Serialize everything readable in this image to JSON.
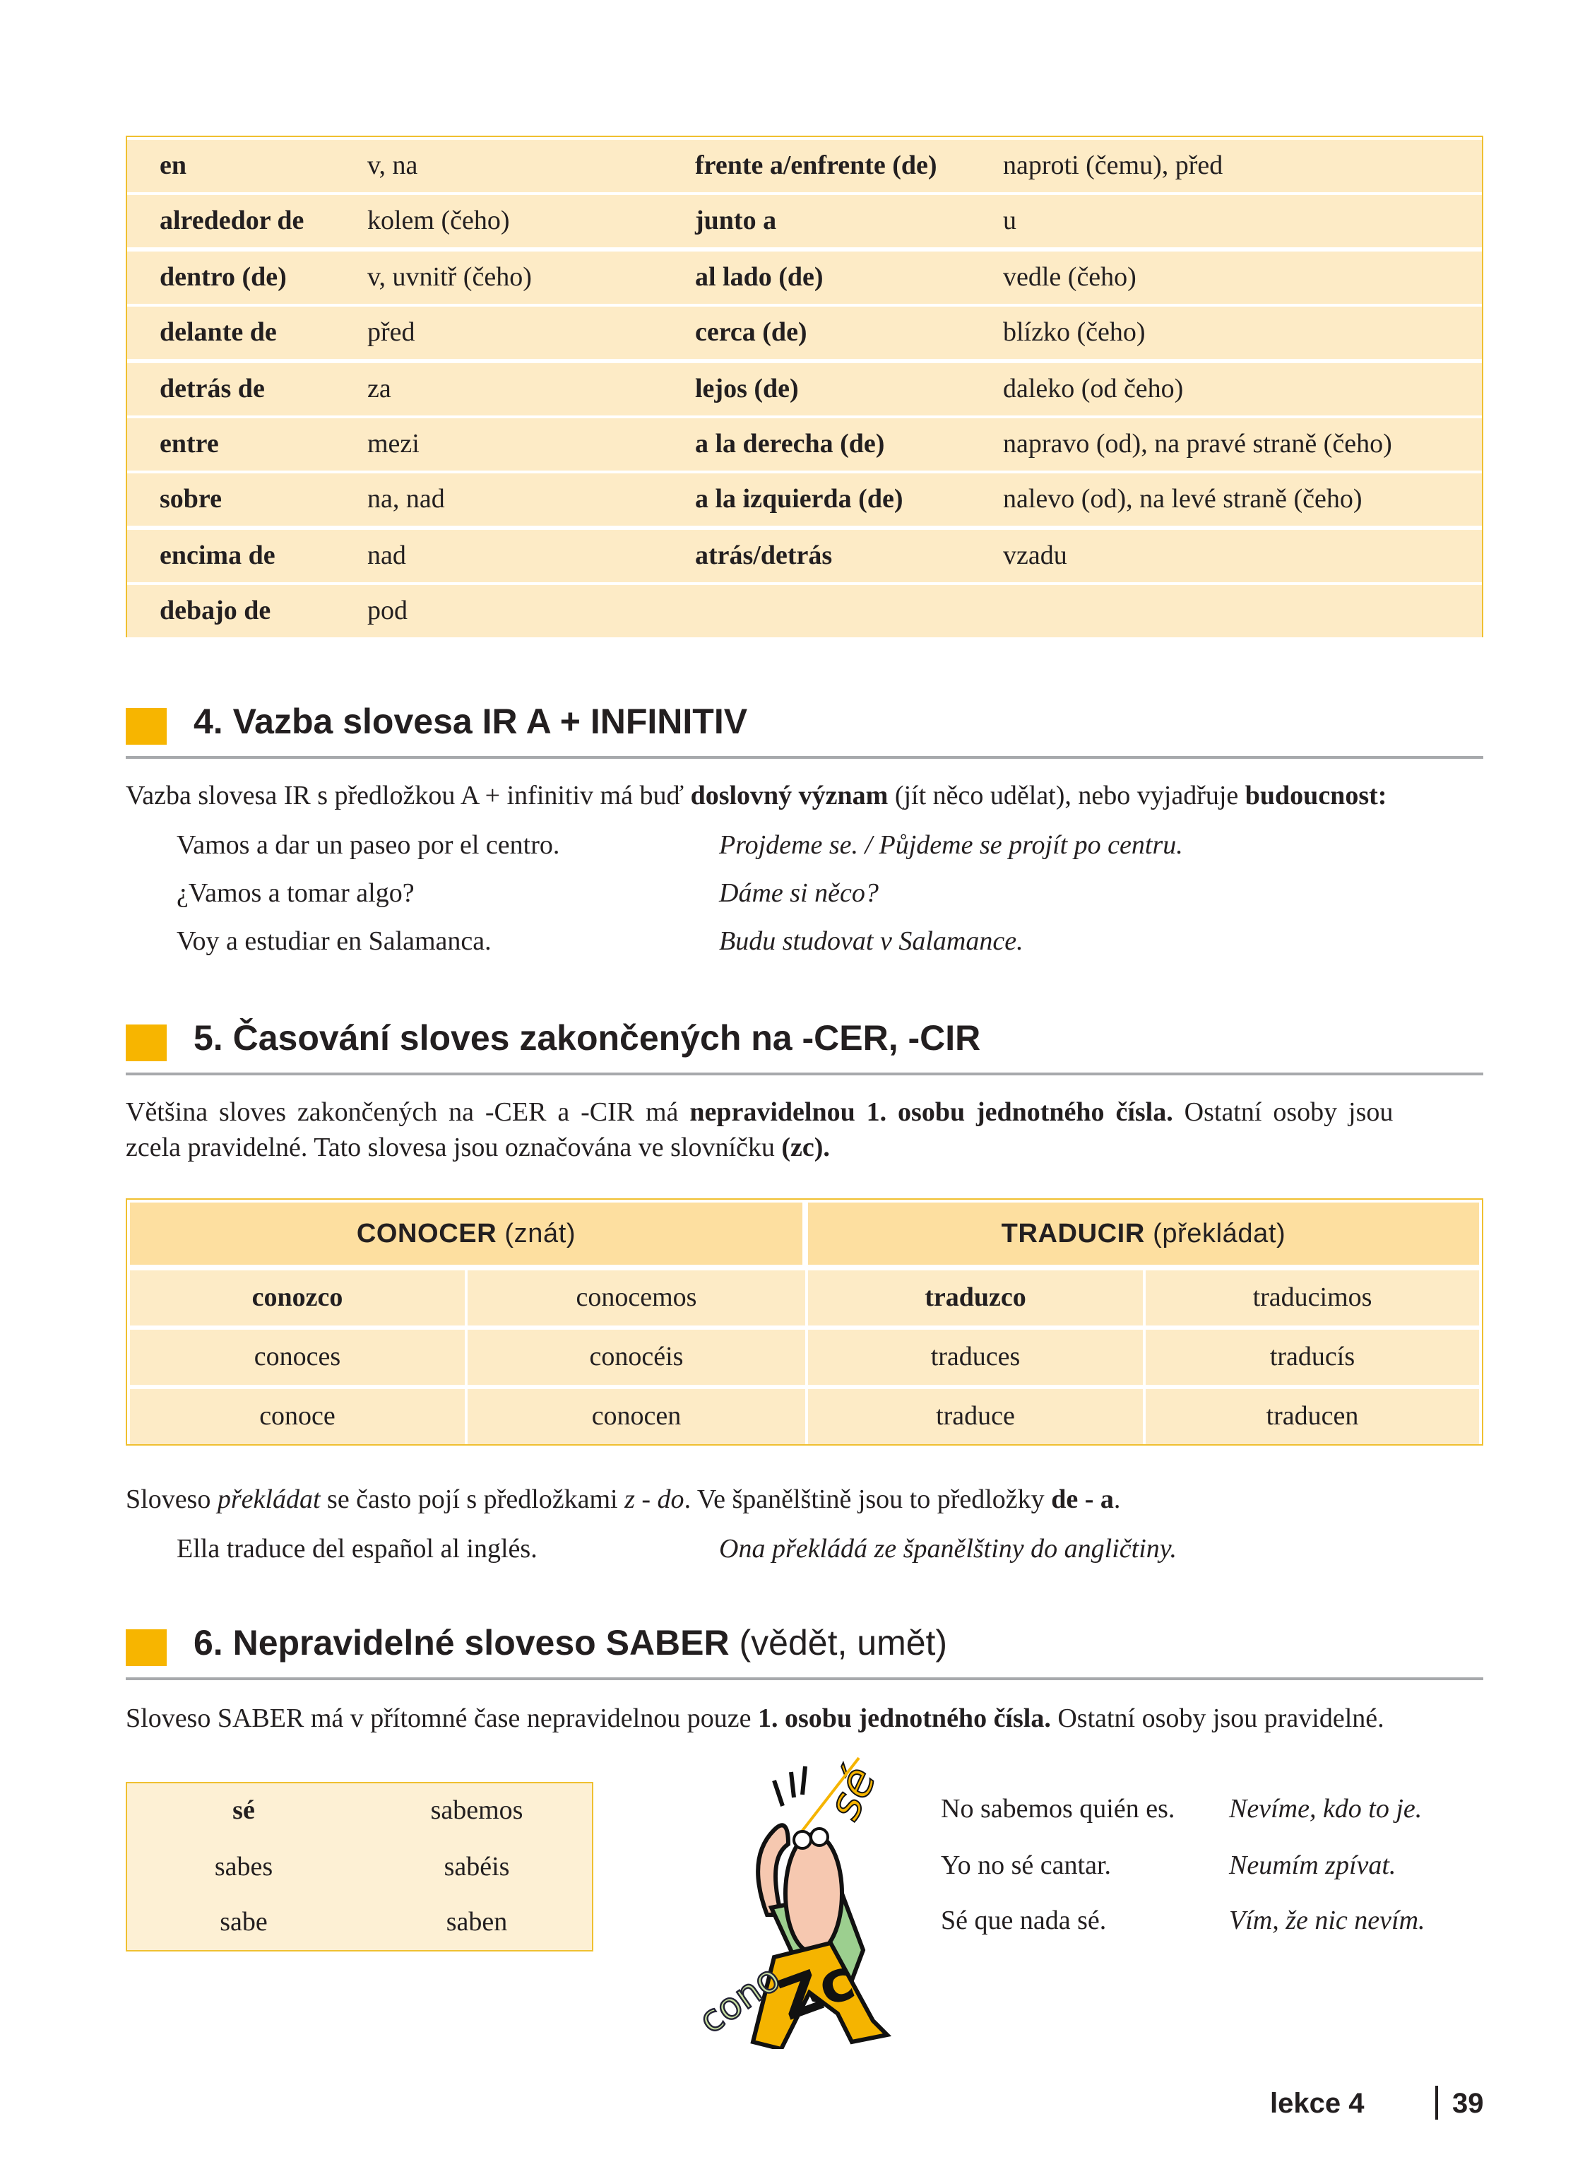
{
  "prepositions": [
    [
      "en",
      "v, na",
      "frente a/enfrente (de)",
      "naproti (čemu), před"
    ],
    [
      "alrededor de",
      "kolem (čeho)",
      "junto a",
      "u"
    ],
    [
      "dentro (de)",
      "v, uvnitř (čeho)",
      "al lado (de)",
      "vedle (čeho)"
    ],
    [
      "delante de",
      "před",
      "cerca (de)",
      "blízko (čeho)"
    ],
    [
      "detrás de",
      "za",
      "lejos (de)",
      "daleko (od čeho)"
    ],
    [
      "entre",
      "mezi",
      "a la derecha (de)",
      "napravo (od), na pravé straně (čeho)"
    ],
    [
      "sobre",
      "na, nad",
      "a la izquierda (de)",
      "nalevo (od), na levé straně (čeho)"
    ],
    [
      "encima de",
      "nad",
      "atrás/detrás",
      "vzadu"
    ],
    [
      "debajo de",
      "pod",
      "",
      ""
    ]
  ],
  "section4": {
    "title": "4. Vazba slovesa IR A + INFINITIV",
    "intro": [
      "Vazba slovesa IR s předložkou A + infinitiv má buď ",
      "doslovný význam",
      " (jít něco udělat), nebo vyjadřuje ",
      "budoucnost:"
    ],
    "examples": [
      [
        "Vamos a dar un paseo por el centro.",
        "Projdeme se. / Půjdeme se projít po centru."
      ],
      [
        "¿Vamos a tomar algo?",
        "Dáme si něco?"
      ],
      [
        "Voy a estudiar en Salamanca.",
        "Budu studovat v Salamance."
      ]
    ]
  },
  "section5": {
    "title": "5. Časování sloves zakončených na -CER, -CIR",
    "intro1": [
      "Většina sloves zakončených na -CER a -CIR má ",
      "nepravidelnou 1. osobu jednotného čísla.",
      " Ostatní osoby jsou"
    ],
    "intro2": [
      "zcela pravidelné. Tato slovesa jsou označována ve slovníčku ",
      "(zc)."
    ],
    "table": {
      "headers": [
        {
          "verb": "CONOCER",
          "meaning": " (znát)"
        },
        {
          "verb": "TRADUCIR",
          "meaning": " (překládat)"
        }
      ],
      "rows": [
        [
          "conozco",
          "conocemos",
          "traduzco",
          "traducimos"
        ],
        [
          "conoces",
          "conocéis",
          "traduces",
          "traducís"
        ],
        [
          "conoce",
          "conocen",
          "traduce",
          "traducen"
        ]
      ]
    },
    "note": [
      "Sloveso ",
      "překládat",
      " se často pojí s předložkami ",
      "z - do",
      ". Ve španělštině jsou to předložky ",
      "de - a",
      "."
    ],
    "example": [
      "Ella traduce del español al inglés.",
      "Ona překládá ze španělštiny do angličtiny."
    ]
  },
  "section6": {
    "title_bold": "6. Nepravidelné sloveso SABER",
    "title_rest": " (vědět, umět)",
    "intro": [
      "Sloveso SABER má v přítomné čase nepravidelnou pouze ",
      "1. osobu jednotného čísla.",
      " Ostatní osoby jsou pravidelné."
    ],
    "table": [
      [
        "sé",
        "sabemos"
      ],
      [
        "sabes",
        "sabéis"
      ],
      [
        "sabe",
        "saben"
      ]
    ],
    "illustration_text": {
      "top": "sé",
      "bottom_small": "cono",
      "bottom_big": "Zc"
    },
    "examples": [
      [
        "No sabemos quién es.",
        "Nevíme, kdo to je."
      ],
      [
        "Yo no sé cantar.",
        "Neumím zpívat."
      ],
      [
        "Sé que nada sé.",
        "Vím, že nic nevím."
      ]
    ]
  },
  "footer": {
    "lesson": "lekce 4",
    "page": "39"
  },
  "colors": {
    "accent": "#f7b500",
    "table_bg": "#fdebc6",
    "table_header": "#fddfa0",
    "border": "#f0c030"
  }
}
